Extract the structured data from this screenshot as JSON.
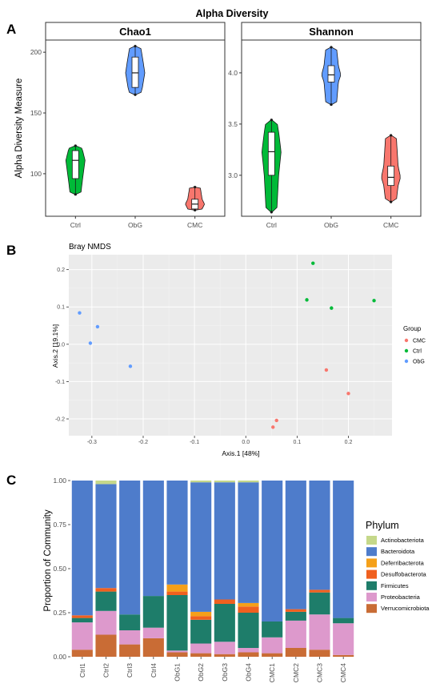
{
  "panel_a": {
    "letter": "A",
    "title": "Alpha Diversity",
    "ylabel": "Alpha Diversity Measure"
  },
  "panel_b": {
    "letter": "B",
    "title": "Bray NMDS",
    "legend_title": "Group"
  },
  "panel_c": {
    "letter": "C",
    "legend_title": "Phylum"
  },
  "colors": {
    "Ctrl": "#00BA38",
    "ObG": "#619CFF",
    "CMC": "#F8766D",
    "panel_bg": "#ebebeb",
    "grid_major": "#ffffff"
  },
  "chart_data": [
    {
      "type": "violin",
      "facet": "Chao1",
      "categories": [
        "Ctrl",
        "ObG",
        "CMC"
      ],
      "yticks": [
        100,
        150,
        200
      ],
      "ylim": [
        65,
        210
      ],
      "grid": false,
      "series": [
        {
          "name": "Ctrl",
          "min": 83,
          "q1": 96,
          "median": 111,
          "q3": 119,
          "max": 123
        },
        {
          "name": "ObG",
          "min": 165,
          "q1": 171,
          "median": 183,
          "q3": 196,
          "max": 205
        },
        {
          "name": "CMC",
          "min": 70,
          "q1": 71,
          "median": 75,
          "q3": 79,
          "max": 89
        }
      ]
    },
    {
      "type": "violin",
      "facet": "Shannon",
      "categories": [
        "Ctrl",
        "ObG",
        "CMC"
      ],
      "yticks": [
        3.0,
        3.5,
        4.0
      ],
      "ylim": [
        2.6,
        4.32
      ],
      "grid": false,
      "series": [
        {
          "name": "Ctrl",
          "min": 2.64,
          "q1": 3.0,
          "median": 3.23,
          "q3": 3.42,
          "max": 3.54
        },
        {
          "name": "ObG",
          "min": 3.69,
          "q1": 3.91,
          "median": 3.98,
          "q3": 4.07,
          "max": 4.25
        },
        {
          "name": "CMC",
          "min": 2.74,
          "q1": 2.9,
          "median": 2.98,
          "q3": 3.09,
          "max": 3.39
        }
      ]
    },
    {
      "type": "scatter",
      "title": "Bray NMDS",
      "xlabel": "Axis.1   [48%]",
      "ylabel": "Axis.2   [19.1%]",
      "xlim": [
        -0.345,
        0.285
      ],
      "ylim": [
        -0.245,
        0.24
      ],
      "xticks": [
        -0.3,
        -0.2,
        -0.1,
        0.0,
        0.1,
        0.2
      ],
      "yticks": [
        -0.2,
        -0.1,
        0.0,
        0.1,
        0.2
      ],
      "grid": true,
      "legend": "right",
      "legend_title": "Group",
      "series": [
        {
          "name": "CMC",
          "x": [
            0.157,
            0.2,
            0.06,
            0.053
          ],
          "y": [
            -0.069,
            -0.132,
            -0.204,
            -0.222
          ]
        },
        {
          "name": "Ctrl",
          "x": [
            0.131,
            0.119,
            0.167,
            0.25
          ],
          "y": [
            0.217,
            0.119,
            0.097,
            0.117
          ]
        },
        {
          "name": "ObG",
          "x": [
            -0.324,
            -0.289,
            -0.303,
            -0.225
          ],
          "y": [
            0.084,
            0.047,
            0.003,
            -0.059
          ]
        }
      ]
    },
    {
      "type": "bar",
      "stacked": true,
      "ylabel": "Proportion of Community",
      "ylim": [
        0,
        1
      ],
      "yticks": [
        "0.00",
        "0.25",
        "0.50",
        "0.75",
        "1.00"
      ],
      "legend": "right",
      "legend_title": "Phylum",
      "categories": [
        "Ctrl1",
        "Ctrl2",
        "Ctrl3",
        "Ctrl4",
        "ObG1",
        "ObG2",
        "ObG3",
        "ObG4",
        "CMC1",
        "CMC2",
        "CMC3",
        "CMC4"
      ],
      "series": [
        {
          "name": "Actinobacteriota",
          "color": "#C5D88A",
          "values": [
            0,
            0.02,
            0,
            0,
            0,
            0.01,
            0.01,
            0.01,
            0,
            0,
            0,
            0
          ]
        },
        {
          "name": "Bacteroidota",
          "color": "#4E7CCB",
          "values": [
            0.765,
            0.59,
            0.76,
            0.655,
            0.59,
            0.735,
            0.665,
            0.685,
            0.8,
            0.73,
            0.62,
            0.78
          ]
        },
        {
          "name": "Deferribacterota",
          "color": "#F5A019",
          "values": [
            0,
            0,
            0,
            0,
            0.04,
            0.025,
            0,
            0.02,
            0,
            0,
            0,
            0
          ]
        },
        {
          "name": "Desulfobacterota",
          "color": "#F0601F",
          "values": [
            0.015,
            0.02,
            0,
            0,
            0.02,
            0.02,
            0.025,
            0.035,
            0,
            0.015,
            0.015,
            0
          ]
        },
        {
          "name": "Firmicutes",
          "color": "#1E7D6A",
          "values": [
            0.025,
            0.11,
            0.09,
            0.18,
            0.315,
            0.135,
            0.215,
            0.2,
            0.09,
            0.05,
            0.125,
            0.03
          ]
        },
        {
          "name": "Proteobacteria",
          "color": "#DD99CC",
          "values": [
            0.155,
            0.135,
            0.08,
            0.06,
            0.01,
            0.055,
            0.07,
            0.025,
            0.09,
            0.155,
            0.2,
            0.18
          ]
        },
        {
          "name": "Verrucomicrobiota",
          "color": "#C96C35",
          "values": [
            0.04,
            0.125,
            0.07,
            0.105,
            0.025,
            0.02,
            0.015,
            0.025,
            0.02,
            0.05,
            0.04,
            0.01
          ]
        }
      ]
    }
  ]
}
